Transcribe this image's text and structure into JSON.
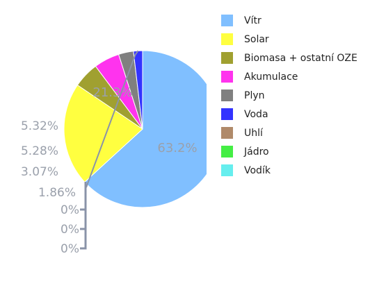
{
  "chart_data": {
    "type": "pie",
    "title": "",
    "legend_position": "right",
    "series": [
      {
        "label": "Vítr",
        "value": 63.2,
        "value_label": "63.2%",
        "color": "#80bfff"
      },
      {
        "label": "Solar",
        "value": 21.3,
        "value_label": "21.3%",
        "color": "#ffff40"
      },
      {
        "label": "Biomasa + ostatní OZE",
        "value": 5.32,
        "value_label": "5.32%",
        "color": "#a0a030"
      },
      {
        "label": "Akumulace",
        "value": 5.28,
        "value_label": "5.28%",
        "color": "#ff33ee"
      },
      {
        "label": "Plyn",
        "value": 3.07,
        "value_label": "3.07%",
        "color": "#808080"
      },
      {
        "label": "Voda",
        "value": 1.86,
        "value_label": "1.86%",
        "color": "#3333ff"
      },
      {
        "label": "Uhlí",
        "value": 0,
        "value_label": "0%",
        "color": "#b08a6a"
      },
      {
        "label": "Jádro",
        "value": 0,
        "value_label": "0%",
        "color": "#44ee44"
      },
      {
        "label": "Vodík",
        "value": 0,
        "value_label": "0%",
        "color": "#66eeee"
      }
    ]
  }
}
